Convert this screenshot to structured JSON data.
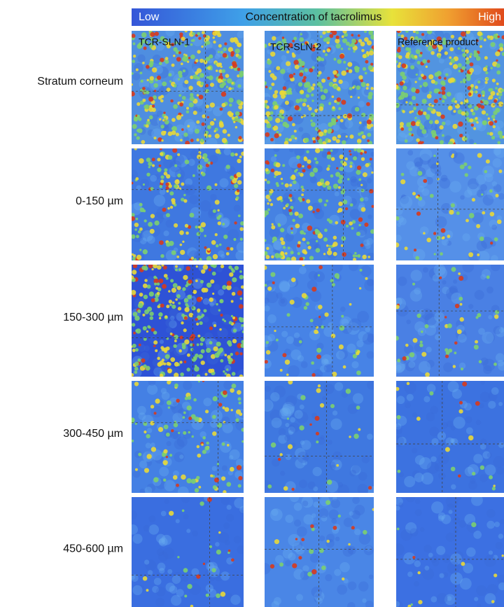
{
  "colorbar": {
    "low": "Low",
    "title": "Concentration of tacrolimus",
    "high": "High"
  },
  "columns": [
    "TCR-SLN-1",
    "TCR-SLN-2",
    "Reference product"
  ],
  "rows": [
    "Stratum corneum",
    "0-150 µm",
    "150-300 µm",
    "300-450 µm",
    "450-600 µm"
  ]
}
